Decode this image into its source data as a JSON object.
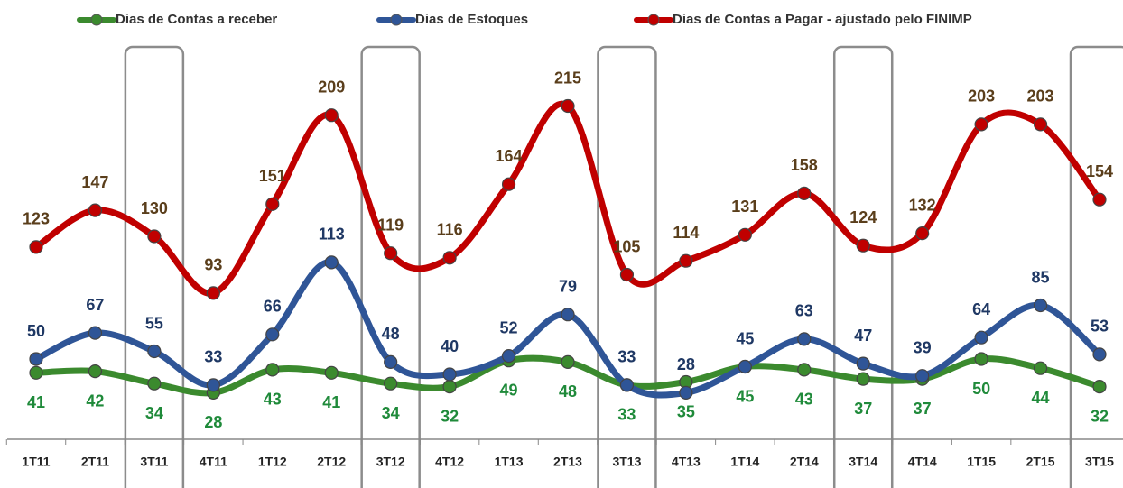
{
  "chart_data": {
    "type": "line",
    "categories": [
      "1T11",
      "2T11",
      "3T11",
      "4T11",
      "1T12",
      "2T12",
      "3T12",
      "4T12",
      "1T13",
      "2T13",
      "3T13",
      "4T13",
      "1T14",
      "2T14",
      "3T14",
      "4T14",
      "1T15",
      "2T15",
      "3T15"
    ],
    "series": [
      {
        "name": "Dias de Contas a receber",
        "color": "#3b8a2e",
        "label_color": "#1f8a3a",
        "label_position": "below",
        "values": [
          41,
          42,
          34,
          28,
          43,
          41,
          34,
          32,
          49,
          48,
          33,
          35,
          45,
          43,
          37,
          37,
          50,
          44,
          32
        ]
      },
      {
        "name": "Dias de Estoques",
        "color": "#2f5597",
        "label_color": "#1f3864",
        "label_position": "above",
        "values": [
          50,
          67,
          55,
          33,
          66,
          113,
          48,
          40,
          52,
          79,
          33,
          28,
          45,
          63,
          47,
          39,
          64,
          85,
          53
        ]
      },
      {
        "name": "Dias de Contas a Pagar - ajustado pelo FINIMP",
        "color": "#c00000",
        "label_color": "#5a3e1b",
        "label_position": "above",
        "values": [
          123,
          147,
          130,
          93,
          151,
          209,
          119,
          116,
          164,
          215,
          105,
          114,
          131,
          158,
          124,
          132,
          203,
          203,
          154
        ]
      }
    ],
    "ylim": [
      0,
      260
    ],
    "legend": "top"
  }
}
